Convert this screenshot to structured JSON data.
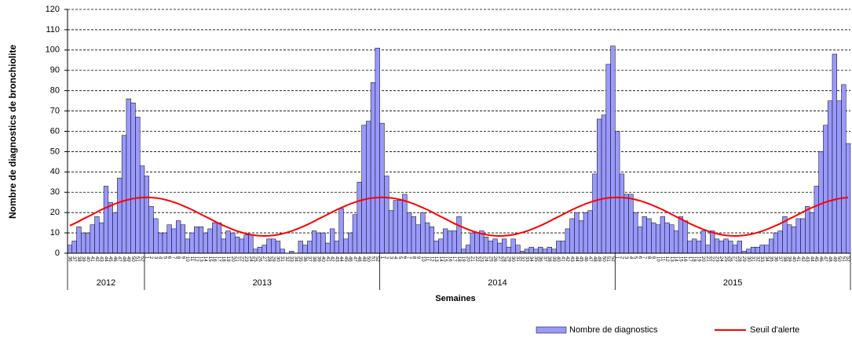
{
  "chart_data": {
    "type": "bar_line",
    "y_label": "Nombre de diagnostics de bronchiolite",
    "x_label": "Semaines",
    "ylim": [
      0,
      120
    ],
    "yticks": [
      0,
      10,
      20,
      30,
      40,
      50,
      60,
      70,
      80,
      90,
      100,
      110,
      120
    ],
    "grid": true,
    "x_groups": [
      "2012",
      "2013",
      "2014",
      "2015"
    ],
    "categories": [
      "36",
      "37",
      "38",
      "39",
      "40",
      "41",
      "42",
      "43",
      "44",
      "45",
      "46",
      "47",
      "48",
      "49",
      "50",
      "51",
      "52",
      "1",
      "2",
      "3",
      "4",
      "5",
      "6",
      "7",
      "8",
      "9",
      "10",
      "11",
      "12",
      "13",
      "14",
      "15",
      "16",
      "17",
      "18",
      "19",
      "20",
      "21",
      "22",
      "23",
      "24",
      "25",
      "26",
      "27",
      "28",
      "29",
      "30",
      "31",
      "32",
      "33",
      "34",
      "35",
      "36",
      "37",
      "38",
      "39",
      "40",
      "41",
      "42",
      "43",
      "44",
      "45",
      "46",
      "47",
      "48",
      "49",
      "50",
      "51",
      "52",
      "1",
      "2",
      "3",
      "4",
      "5",
      "6",
      "7",
      "8",
      "9",
      "10",
      "11",
      "12",
      "13",
      "14",
      "15",
      "16",
      "17",
      "18",
      "19",
      "20",
      "21",
      "22",
      "23",
      "24",
      "25",
      "26",
      "27",
      "28",
      "29",
      "30",
      "31",
      "32",
      "33",
      "34",
      "35",
      "36",
      "37",
      "38",
      "39",
      "40",
      "41",
      "42",
      "43",
      "44",
      "45",
      "46",
      "47",
      "48",
      "49",
      "50",
      "51",
      "52",
      "1",
      "2",
      "3",
      "4",
      "5",
      "6",
      "7",
      "8",
      "9",
      "10",
      "11",
      "12",
      "13",
      "14",
      "15",
      "16",
      "17",
      "18",
      "19",
      "20",
      "21",
      "22",
      "23",
      "24",
      "25",
      "26",
      "27",
      "28",
      "29",
      "30",
      "31",
      "32",
      "33",
      "34",
      "35",
      "36",
      "37",
      "38",
      "39",
      "40",
      "41",
      "42",
      "43",
      "44",
      "45",
      "46",
      "47",
      "48",
      "49",
      "50",
      "51",
      "52"
    ],
    "series": [
      {
        "name": "Nombre de diagnostics",
        "kind": "bar",
        "color": "#9999ff",
        "values": [
          4,
          6,
          13,
          10,
          10,
          14,
          18,
          15,
          33,
          25,
          20,
          37,
          58,
          76,
          74,
          67,
          43,
          38,
          23,
          17,
          10,
          10,
          14,
          12,
          16,
          14,
          7,
          10,
          13,
          13,
          10,
          12,
          15,
          15,
          7,
          11,
          10,
          8,
          7,
          9,
          9,
          2,
          3,
          4,
          7,
          7,
          6,
          2,
          0,
          1,
          0,
          6,
          4,
          6,
          11,
          10,
          10,
          5,
          12,
          6,
          22,
          7,
          10,
          19,
          35,
          63,
          65,
          84,
          101,
          64,
          38,
          21,
          26,
          26,
          29,
          20,
          18,
          14,
          20,
          15,
          13,
          6,
          7,
          12,
          11,
          11,
          18,
          2,
          4,
          10,
          10,
          11,
          8,
          6,
          7,
          5,
          7,
          3,
          7,
          4,
          1,
          2,
          3,
          2,
          3,
          2,
          3,
          2,
          6,
          6,
          12,
          17,
          20,
          16,
          20,
          21,
          39,
          66,
          68,
          93,
          102,
          60,
          39,
          29,
          29,
          20,
          13,
          18,
          17,
          15,
          14,
          18,
          15,
          14,
          11,
          18,
          16,
          6,
          7,
          6,
          11,
          4,
          11,
          7,
          6,
          7,
          6,
          4,
          6,
          1,
          2,
          3,
          3,
          4,
          4,
          7,
          10,
          11,
          18,
          14,
          13,
          17,
          17,
          23,
          20,
          33,
          50,
          63,
          75,
          98,
          75,
          83,
          54
        ]
      },
      {
        "name": "Seuil d'alerte",
        "kind": "line",
        "color": "#ff0000",
        "values": [
          13.6,
          14.6,
          15.7,
          16.9,
          18.0,
          19.1,
          20.3,
          21.4,
          22.4,
          23.4,
          24.3,
          25.1,
          25.8,
          26.4,
          26.9,
          27.2,
          27.4,
          27.5,
          27.4,
          27.2,
          26.9,
          26.4,
          25.8,
          25.1,
          24.3,
          23.4,
          22.4,
          21.4,
          20.3,
          19.1,
          18.0,
          16.9,
          15.7,
          14.6,
          13.6,
          12.6,
          11.7,
          10.9,
          10.2,
          9.6,
          9.1,
          8.8,
          8.6,
          8.5,
          8.6,
          8.8,
          9.1,
          9.6,
          10.2,
          10.9,
          11.7,
          12.6,
          13.6,
          14.6,
          15.7,
          16.9,
          18.0,
          19.1,
          20.3,
          21.4,
          22.4,
          23.4,
          24.3,
          25.1,
          25.8,
          26.4,
          26.9,
          27.2,
          27.4,
          27.5,
          27.4,
          27.2,
          26.9,
          26.4,
          25.8,
          25.1,
          24.3,
          23.4,
          22.4,
          21.4,
          20.3,
          19.1,
          18.0,
          16.9,
          15.7,
          14.6,
          13.6,
          12.6,
          11.7,
          10.9,
          10.2,
          9.6,
          9.1,
          8.8,
          8.6,
          8.5,
          8.6,
          8.8,
          9.1,
          9.6,
          10.2,
          10.9,
          11.7,
          12.6,
          13.6,
          14.6,
          15.7,
          16.9,
          18.0,
          19.1,
          20.3,
          21.4,
          22.4,
          23.4,
          24.3,
          25.1,
          25.8,
          26.4,
          26.9,
          27.2,
          27.4,
          27.5,
          27.4,
          27.2,
          26.9,
          26.4,
          25.8,
          25.1,
          24.3,
          23.4,
          22.4,
          21.4,
          20.3,
          19.1,
          18.0,
          16.9,
          15.7,
          14.6,
          13.6,
          12.6,
          11.7,
          10.9,
          10.2,
          9.6,
          9.1,
          8.8,
          8.6,
          8.5,
          8.6,
          8.8,
          9.1,
          9.6,
          10.2,
          10.9,
          11.7,
          12.6,
          13.6,
          14.6,
          15.7,
          16.9,
          18.0,
          19.1,
          20.3,
          21.4,
          22.4,
          23.4,
          24.3,
          25.1,
          25.8,
          26.4,
          26.9,
          27.2,
          27.4
        ]
      }
    ]
  }
}
